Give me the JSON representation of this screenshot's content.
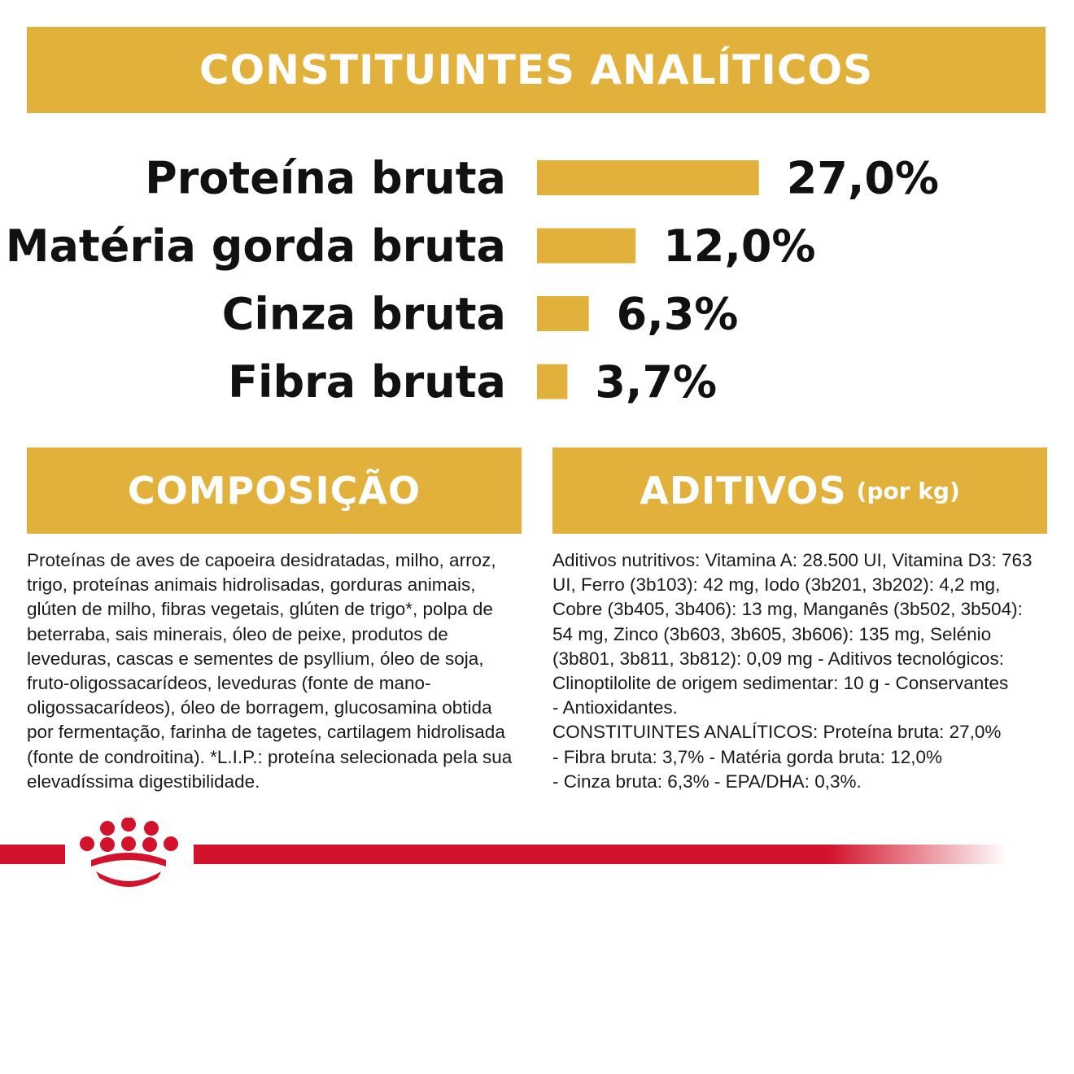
{
  "header": {
    "title": "CONSTITUINTES ANALÍTICOS"
  },
  "chart_data": {
    "type": "bar",
    "orientation": "horizontal",
    "categories": [
      "Proteína bruta",
      "Matéria gorda bruta",
      "Cinza bruta",
      "Fibra bruta"
    ],
    "values": [
      27.0,
      12.0,
      6.3,
      3.7
    ],
    "value_labels": [
      "27,0%",
      "12,0%",
      "6,3%",
      "3,7%"
    ],
    "unit": "%",
    "bar_color": "#e2b13c",
    "grid": false
  },
  "composition": {
    "title": "COMPOSIÇÃO",
    "text": "Proteínas de aves de capoeira desidratadas, milho, arroz, trigo, proteínas animais hidrolisadas, gorduras animais, glúten de milho, fibras vegetais, glúten de trigo*, polpa de beterraba, sais minerais, óleo de peixe, produtos de leveduras, cascas e sementes de psyllium, óleo de soja, fruto-oligossacarídeos, leveduras (fonte de mano-oligossacarídeos), óleo de borragem, glucosamina obtida por fermentação, farinha de tagetes, cartilagem hidrolisada (fonte de condroitina). *L.I.P.: proteína selecionada pela sua elevadíssima digestibilidade."
  },
  "additives": {
    "title": "ADITIVOS",
    "subtitle": "(por kg)",
    "text": "Aditivos nutritivos: Vitamina A: 28.500 UI, Vitamina D3: 763 UI, Ferro (3b103): 42 mg, Iodo (3b201, 3b202): 4,2 mg, Cobre (3b405, 3b406): 13 mg, Manganês (3b502, 3b504): 54 mg, Zinco (3b603, 3b605, 3b606): 135 mg, Selénio (3b801, 3b811, 3b812): 0,09 mg - Aditivos tecnológicos: Clinoptilolite de origem sedimentar: 10 g - Conservantes\n- Antioxidantes.\nCONSTITUINTES ANALÍTICOS: Proteína bruta: 27,0%\n- Fibra bruta: 3,7% - Matéria gorda bruta: 12,0%\n- Cinza bruta: 6,3% - EPA/DHA: 0,3%."
  },
  "colors": {
    "gold": "#e2b13c",
    "brand_red": "#d2132b"
  },
  "footer": {
    "logo_icon": "royal-canin-crown-icon"
  }
}
